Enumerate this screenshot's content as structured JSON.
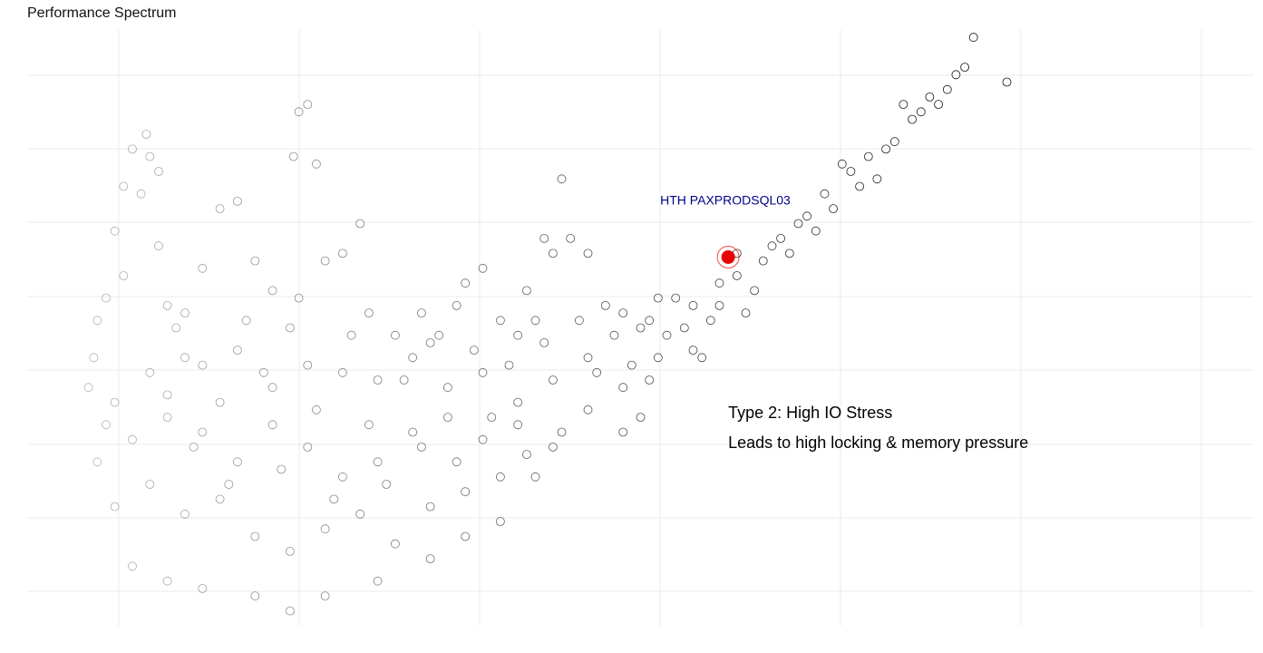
{
  "title": "Performance Spectrum",
  "chart_data": {
    "type": "scatter",
    "title": "Performance Spectrum",
    "xlabel": "",
    "ylabel": "",
    "grid": true,
    "legend": "none",
    "highlight": {
      "label": "HTH PAXPRODSQL03",
      "x": 3.5,
      "y": 4.95,
      "color": "#e80000",
      "label_color": "#00008b"
    },
    "annotations": [
      {
        "text": "Type 2: High IO Stress",
        "x": 3.5,
        "y": 2.85
      },
      {
        "text": "Leads to high locking & memory pressure",
        "x": 3.5,
        "y": 2.45
      }
    ],
    "ranges": {
      "x": [
        -0.5,
        6.5
      ],
      "y": [
        0,
        8
      ]
    },
    "series": [
      {
        "points": [
          [
            -0.12,
            3.6
          ],
          [
            -0.1,
            4.1
          ],
          [
            -0.05,
            4.4
          ],
          [
            0.0,
            5.3
          ],
          [
            0.05,
            5.9
          ],
          [
            0.1,
            6.4
          ],
          [
            0.18,
            6.6
          ],
          [
            0.25,
            6.1
          ],
          [
            0.3,
            4.3
          ],
          [
            0.35,
            4.0
          ],
          [
            0.4,
            4.2
          ],
          [
            0.5,
            4.8
          ],
          [
            0.6,
            5.6
          ],
          [
            0.7,
            5.7
          ],
          [
            0.8,
            4.9
          ],
          [
            0.9,
            4.5
          ],
          [
            1.0,
            4.0
          ],
          [
            1.02,
            6.3
          ],
          [
            1.05,
            6.9
          ],
          [
            1.1,
            7.0
          ],
          [
            1.15,
            6.2
          ],
          [
            1.2,
            4.9
          ],
          [
            1.3,
            5.0
          ],
          [
            1.4,
            5.4
          ],
          [
            1.45,
            4.2
          ],
          [
            1.6,
            3.9
          ],
          [
            1.75,
            4.2
          ],
          [
            1.8,
            3.8
          ],
          [
            1.95,
            4.3
          ],
          [
            2.0,
            4.6
          ],
          [
            2.1,
            4.8
          ],
          [
            2.2,
            4.1
          ],
          [
            2.3,
            3.9
          ],
          [
            2.35,
            4.5
          ],
          [
            2.4,
            4.1
          ],
          [
            2.45,
            5.2
          ],
          [
            2.5,
            5.0
          ],
          [
            2.55,
            6.0
          ],
          [
            2.6,
            5.2
          ],
          [
            2.7,
            5.0
          ],
          [
            2.8,
            4.3
          ],
          [
            2.9,
            4.2
          ],
          [
            3.0,
            4.0
          ],
          [
            3.05,
            4.1
          ],
          [
            3.1,
            4.4
          ],
          [
            3.2,
            4.4
          ],
          [
            3.3,
            4.3
          ],
          [
            3.4,
            4.1
          ],
          [
            3.45,
            4.6
          ],
          [
            3.55,
            4.7
          ],
          [
            3.6,
            4.2
          ],
          [
            3.7,
            4.9
          ],
          [
            3.8,
            5.2
          ],
          [
            3.85,
            5.0
          ],
          [
            3.9,
            5.4
          ],
          [
            4.0,
            5.3
          ],
          [
            4.05,
            5.8
          ],
          [
            4.1,
            5.6
          ],
          [
            4.15,
            6.2
          ],
          [
            4.2,
            6.1
          ],
          [
            4.3,
            6.3
          ],
          [
            4.4,
            6.4
          ],
          [
            4.5,
            7.0
          ],
          [
            4.55,
            6.8
          ],
          [
            4.6,
            6.9
          ],
          [
            4.65,
            7.1
          ],
          [
            4.75,
            7.2
          ],
          [
            4.85,
            7.5
          ],
          [
            4.9,
            7.9
          ],
          [
            5.09,
            7.3
          ],
          [
            -0.15,
            3.2
          ],
          [
            0.0,
            3.0
          ],
          [
            0.2,
            3.4
          ],
          [
            0.3,
            3.1
          ],
          [
            0.5,
            3.5
          ],
          [
            0.7,
            3.7
          ],
          [
            0.9,
            3.2
          ],
          [
            1.1,
            3.5
          ],
          [
            1.3,
            3.4
          ],
          [
            1.5,
            3.3
          ],
          [
            1.7,
            3.6
          ],
          [
            1.9,
            3.2
          ],
          [
            2.1,
            3.4
          ],
          [
            2.3,
            3.0
          ],
          [
            2.5,
            3.3
          ],
          [
            2.7,
            3.6
          ],
          [
            2.9,
            3.2
          ],
          [
            3.1,
            3.6
          ],
          [
            3.3,
            3.7
          ],
          [
            0.1,
            2.5
          ],
          [
            0.3,
            2.8
          ],
          [
            0.5,
            2.6
          ],
          [
            0.7,
            2.2
          ],
          [
            0.9,
            2.7
          ],
          [
            1.1,
            2.4
          ],
          [
            1.3,
            2.0
          ],
          [
            1.5,
            2.2
          ],
          [
            1.7,
            2.6
          ],
          [
            1.9,
            2.8
          ],
          [
            2.1,
            2.5
          ],
          [
            2.3,
            2.7
          ],
          [
            2.5,
            2.4
          ],
          [
            2.7,
            2.9
          ],
          [
            2.9,
            2.6
          ],
          [
            3.0,
            2.8
          ],
          [
            0.0,
            1.6
          ],
          [
            0.2,
            1.9
          ],
          [
            0.4,
            1.5
          ],
          [
            0.6,
            1.7
          ],
          [
            0.8,
            1.2
          ],
          [
            1.0,
            1.0
          ],
          [
            1.2,
            1.3
          ],
          [
            1.4,
            1.5
          ],
          [
            1.6,
            1.1
          ],
          [
            1.8,
            1.6
          ],
          [
            2.0,
            1.8
          ],
          [
            2.2,
            2.0
          ],
          [
            0.1,
            0.8
          ],
          [
            0.3,
            0.6
          ],
          [
            0.5,
            0.5
          ],
          [
            0.8,
            0.4
          ],
          [
            1.0,
            0.2
          ],
          [
            1.2,
            0.4
          ],
          [
            1.5,
            0.6
          ],
          [
            1.8,
            0.9
          ],
          [
            2.0,
            1.2
          ],
          [
            2.2,
            1.4
          ],
          [
            2.4,
            2.0
          ],
          [
            -0.1,
            2.2
          ],
          [
            -0.05,
            2.7
          ],
          [
            0.05,
            4.7
          ],
          [
            0.15,
            5.8
          ],
          [
            0.2,
            6.3
          ],
          [
            0.25,
            5.1
          ],
          [
            0.4,
            3.6
          ],
          [
            0.45,
            2.4
          ],
          [
            0.6,
            3.0
          ],
          [
            0.65,
            1.9
          ],
          [
            0.75,
            4.1
          ],
          [
            0.85,
            3.4
          ],
          [
            0.95,
            2.1
          ],
          [
            1.05,
            4.4
          ],
          [
            1.15,
            2.9
          ],
          [
            1.25,
            1.7
          ],
          [
            1.35,
            3.9
          ],
          [
            1.45,
            2.7
          ],
          [
            1.55,
            1.9
          ],
          [
            1.65,
            3.3
          ],
          [
            1.75,
            2.4
          ],
          [
            1.85,
            3.9
          ],
          [
            1.95,
            2.2
          ],
          [
            2.05,
            3.7
          ],
          [
            2.15,
            2.8
          ],
          [
            2.25,
            3.5
          ],
          [
            2.35,
            2.3
          ],
          [
            2.45,
            3.8
          ],
          [
            2.55,
            2.6
          ],
          [
            2.65,
            4.1
          ],
          [
            2.75,
            3.4
          ],
          [
            2.85,
            3.9
          ],
          [
            2.95,
            3.5
          ],
          [
            3.05,
            3.3
          ],
          [
            3.15,
            3.9
          ],
          [
            3.25,
            4.0
          ],
          [
            3.35,
            3.6
          ],
          [
            3.45,
            4.3
          ],
          [
            3.55,
            5.0
          ],
          [
            3.65,
            4.5
          ],
          [
            3.75,
            5.1
          ],
          [
            3.95,
            5.5
          ],
          [
            4.25,
            5.9
          ],
          [
            4.35,
            6.0
          ],
          [
            4.45,
            6.5
          ],
          [
            4.7,
            7.0
          ],
          [
            4.8,
            7.4
          ]
        ]
      }
    ]
  }
}
